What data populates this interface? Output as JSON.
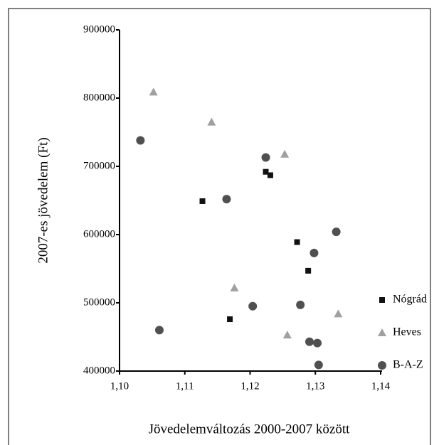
{
  "chart_data": {
    "type": "scatter",
    "x_label": "Jövedelemváltozás 2000-2007 között",
    "y_label": "2007-es jövedelem (Ft)",
    "xlim": [
      1.1,
      1.14
    ],
    "xticks": [
      {
        "value": 1.1,
        "label": "1,10"
      },
      {
        "value": 1.11,
        "label": "1,11"
      },
      {
        "value": 1.12,
        "label": "1,12"
      },
      {
        "value": 1.13,
        "label": "1,13"
      },
      {
        "value": 1.14,
        "label": "1,14"
      }
    ],
    "ylim": [
      400000,
      900000
    ],
    "yticks": [
      400000,
      500000,
      600000,
      700000,
      800000,
      900000
    ],
    "legend": "right",
    "series": [
      {
        "name": "Nógrád",
        "color": "#111111",
        "marker": "square",
        "x": [
          1.1127,
          1.1224,
          1.1231,
          1.1169,
          1.1272,
          1.1289
        ],
        "values": [
          649000,
          692000,
          687000,
          476000,
          589000,
          547000
        ]
      },
      {
        "name": "Heves",
        "color": "#a0a0a0",
        "marker": "triangle",
        "x": [
          1.1052,
          1.1141,
          1.1253,
          1.1176,
          1.1335,
          1.1257
        ],
        "values": [
          809000,
          765000,
          718000,
          522000,
          484000,
          453000
        ]
      },
      {
        "name": "B-A-Z",
        "color": "#505050",
        "marker": "circle",
        "x": [
          1.1032,
          1.1224,
          1.1164,
          1.1332,
          1.1298,
          1.1204,
          1.1277,
          1.1061,
          1.1291,
          1.1303,
          1.1305
        ],
        "values": [
          738000,
          713000,
          652000,
          604000,
          573000,
          495000,
          497000,
          460000,
          443000,
          441000,
          409000
        ]
      }
    ]
  }
}
